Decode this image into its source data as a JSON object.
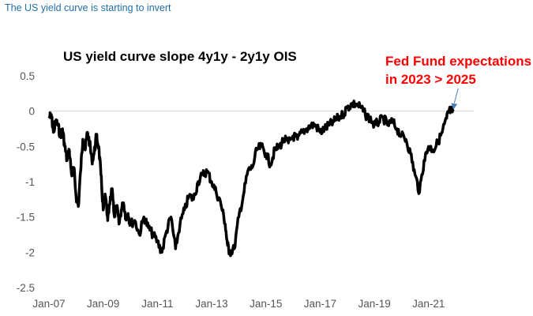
{
  "caption": "The US yield curve is starting to invert",
  "colors": {
    "caption": "#1f6fa8",
    "line": "#000000",
    "annotation": "#ff0000",
    "arrow": "#4a7ebb",
    "baseline": "#d9d9d9"
  },
  "chart_data": {
    "type": "line",
    "title": "US yield curve slope 4y1y - 2y1y OIS",
    "xlabel": "",
    "ylabel": "",
    "ylim": [
      -2.5,
      0.5
    ],
    "yticks": [
      0.5,
      0,
      -0.5,
      -1,
      -1.5,
      -2,
      -2.5
    ],
    "ytick_labels": [
      "0.5",
      "0",
      "-0.5",
      "-1",
      "-1.5",
      "-2",
      "-2.5"
    ],
    "xlim": [
      "2007-01",
      "2022-09"
    ],
    "xticks": [
      "2007-01",
      "2009-01",
      "2011-01",
      "2013-01",
      "2015-01",
      "2017-01",
      "2019-01",
      "2021-01"
    ],
    "xtick_labels": [
      "Jan-07",
      "Jan-09",
      "Jan-11",
      "Jan-13",
      "Jan-15",
      "Jan-17",
      "Jan-19",
      "Jan-21"
    ],
    "grid": false,
    "reference_line": 0,
    "annotation": {
      "lines": [
        "Fed Fund expectations",
        "in 2023 >  2025"
      ],
      "points_to": "2021-12"
    },
    "series": [
      {
        "x": [
          "2007-01",
          "2007-02",
          "2007-03",
          "2007-04",
          "2007-05",
          "2007-06",
          "2007-07",
          "2007-08",
          "2007-09",
          "2007-10",
          "2007-11",
          "2007-12",
          "2008-01",
          "2008-02",
          "2008-03",
          "2008-04",
          "2008-05",
          "2008-06",
          "2008-07",
          "2008-08",
          "2008-09",
          "2008-10",
          "2008-11",
          "2008-12",
          "2009-01",
          "2009-02",
          "2009-03",
          "2009-04",
          "2009-05",
          "2009-06",
          "2009-07",
          "2009-08",
          "2009-09",
          "2009-10",
          "2009-11",
          "2009-12",
          "2010-01",
          "2010-03",
          "2010-05",
          "2010-07",
          "2010-09",
          "2010-11",
          "2011-01",
          "2011-03",
          "2011-05",
          "2011-07",
          "2011-09",
          "2011-11",
          "2012-01",
          "2012-03",
          "2012-05",
          "2012-07",
          "2012-09",
          "2012-11",
          "2013-01",
          "2013-03",
          "2013-05",
          "2013-07",
          "2013-08",
          "2013-09",
          "2013-11",
          "2014-01",
          "2014-03",
          "2014-05",
          "2014-07",
          "2014-09",
          "2014-11",
          "2015-01",
          "2015-03",
          "2015-05",
          "2015-07",
          "2015-09",
          "2015-11",
          "2016-01",
          "2016-03",
          "2016-05",
          "2016-07",
          "2016-09",
          "2016-11",
          "2017-01",
          "2017-03",
          "2017-05",
          "2017-07",
          "2017-09",
          "2017-11",
          "2018-01",
          "2018-03",
          "2018-05",
          "2018-07",
          "2018-09",
          "2018-11",
          "2019-01",
          "2019-03",
          "2019-05",
          "2019-07",
          "2019-09",
          "2019-11",
          "2020-01",
          "2020-03",
          "2020-05",
          "2020-07",
          "2020-09",
          "2020-11",
          "2021-01",
          "2021-03",
          "2021-05",
          "2021-07",
          "2021-09",
          "2021-10",
          "2021-11",
          "2021-12"
        ],
        "y": [
          -0.1,
          -0.05,
          -0.3,
          -0.15,
          -0.2,
          -0.35,
          -0.25,
          -0.5,
          -0.7,
          -0.55,
          -0.9,
          -0.8,
          -1.2,
          -1.35,
          -0.85,
          -0.4,
          -0.55,
          -0.3,
          -0.45,
          -0.7,
          -0.6,
          -0.35,
          -0.5,
          -0.9,
          -1.4,
          -1.2,
          -1.55,
          -1.3,
          -1.1,
          -1.5,
          -1.35,
          -1.6,
          -1.4,
          -1.3,
          -1.5,
          -1.45,
          -1.6,
          -1.55,
          -1.75,
          -1.5,
          -1.65,
          -1.75,
          -1.85,
          -2.0,
          -1.7,
          -1.5,
          -1.95,
          -1.6,
          -1.4,
          -1.2,
          -1.25,
          -1.0,
          -0.9,
          -0.85,
          -1.0,
          -1.15,
          -1.3,
          -1.6,
          -1.9,
          -2.0,
          -1.95,
          -1.5,
          -1.2,
          -0.85,
          -0.8,
          -0.55,
          -0.5,
          -0.6,
          -0.75,
          -0.55,
          -0.5,
          -0.4,
          -0.45,
          -0.35,
          -0.4,
          -0.3,
          -0.25,
          -0.2,
          -0.2,
          -0.3,
          -0.25,
          -0.2,
          -0.15,
          -0.1,
          -0.05,
          0.05,
          0.1,
          0.1,
          0.05,
          -0.05,
          -0.1,
          -0.2,
          -0.15,
          -0.1,
          -0.2,
          -0.15,
          -0.25,
          -0.35,
          -0.4,
          -0.6,
          -0.9,
          -1.15,
          -0.7,
          -0.5,
          -0.55,
          -0.45,
          -0.3,
          -0.1,
          0.0,
          0.0,
          0.0
        ]
      }
    ]
  }
}
